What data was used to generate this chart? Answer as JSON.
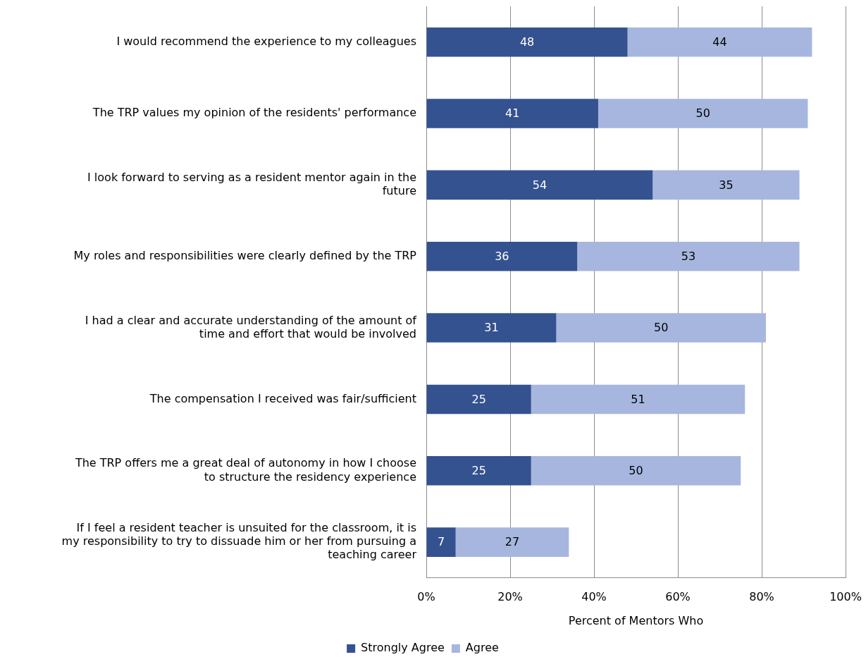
{
  "chart_data": {
    "type": "bar",
    "orientation": "horizontal",
    "stacked": true,
    "categories": [
      "I would recommend the experience to my colleagues",
      "The TRP values my opinion of the residents' performance",
      "I look forward to serving as a resident mentor again in the future",
      "My roles and responsibilities were clearly defined by the TRP",
      "I had a clear and accurate understanding of the amount of time and effort that would be involved",
      "The compensation I received was fair/sufficient",
      "The TRP offers me a great deal of autonomy in how I choose to structure the residency experience",
      "If I feel a resident teacher is unsuited for the classroom, it is my responsibility to try to dissuade him or her from pursuing a teaching career"
    ],
    "series": [
      {
        "name": "Strongly Agree",
        "color": "#34528f",
        "values": [
          48,
          41,
          54,
          36,
          31,
          25,
          25,
          7
        ]
      },
      {
        "name": "Agree",
        "color": "#a6b6df",
        "values": [
          44,
          50,
          35,
          53,
          50,
          51,
          50,
          27
        ]
      }
    ],
    "xlim": [
      0,
      100
    ],
    "xticks": [
      {
        "value": 0,
        "label": "0%"
      },
      {
        "value": 20,
        "label": "20%"
      },
      {
        "value": 40,
        "label": "40%"
      },
      {
        "value": 60,
        "label": "60%"
      },
      {
        "value": 80,
        "label": "80%"
      },
      {
        "value": 100,
        "label": "100%"
      }
    ],
    "xlabel": "Percent of Mentors Who",
    "grid": "x",
    "legend": "bottom",
    "data_labels": true
  }
}
